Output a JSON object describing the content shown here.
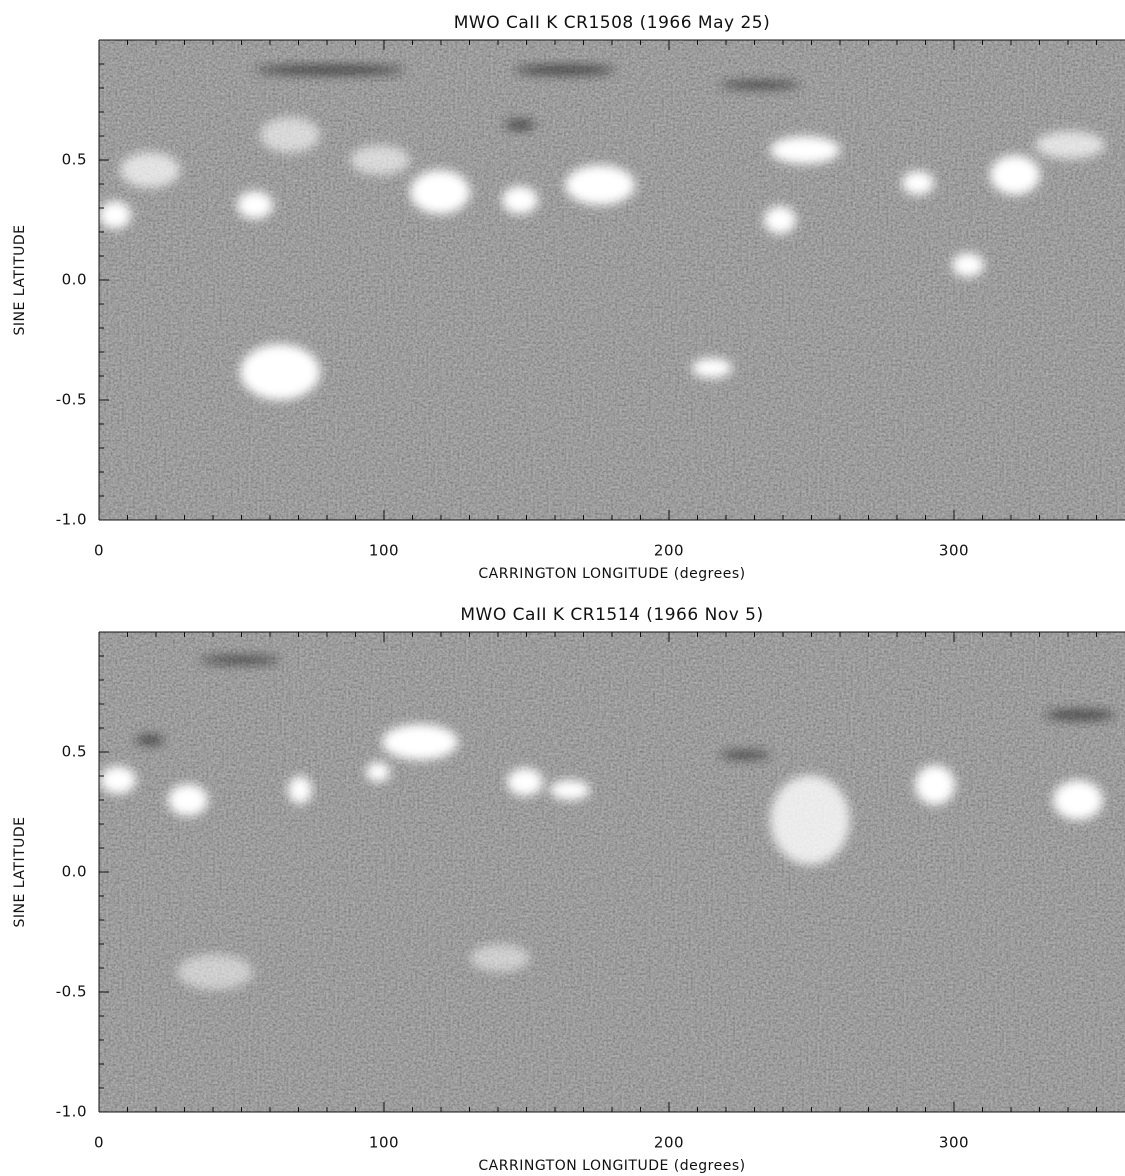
{
  "chart_data": [
    {
      "type": "image",
      "title": "MWO CaII K CR1508 (1966 May 25)",
      "x_label": "CARRINGTON LONGITUDE (degrees)",
      "y_label": "SINE LATITUDE",
      "xlim": [
        0,
        360
      ],
      "ylim": [
        -1,
        1
      ],
      "xticks": [
        0,
        100,
        200,
        300
      ],
      "yticks": [
        0.5,
        {
          "value": 0,
          "label": "0.0"
        },
        -0.5,
        {
          "value": -1,
          "label": "-1.0"
        }
      ],
      "xminorticks": [
        10,
        20,
        30,
        40,
        50,
        60,
        70,
        80,
        90,
        110,
        120,
        130,
        140,
        150,
        160,
        170,
        180,
        190,
        210,
        220,
        230,
        240,
        250,
        260,
        270,
        280,
        290,
        310,
        320,
        330,
        340,
        350
      ],
      "yminorticks": [
        -0.9,
        -0.8,
        -0.7,
        -0.6,
        -0.4,
        -0.3,
        -0.2,
        -0.1,
        0.1,
        0.2,
        0.3,
        0.4,
        0.6,
        0.7,
        0.8,
        0.9
      ]
    },
    {
      "type": "image",
      "title": "MWO CaII K CR1514 (1966 Nov  5)",
      "x_label": "CARRINGTON LONGITUDE (degrees)",
      "y_label": "SINE LATITUDE",
      "xlim": [
        0,
        360
      ],
      "ylim": [
        -1,
        1
      ],
      "xticks": [
        0,
        100,
        200,
        300
      ],
      "yticks": [
        0.5,
        {
          "value": 0,
          "label": "0.0"
        },
        -0.5,
        {
          "value": -1,
          "label": "-1.0"
        }
      ],
      "xminorticks": [
        10,
        20,
        30,
        40,
        50,
        60,
        70,
        80,
        90,
        110,
        120,
        130,
        140,
        150,
        160,
        170,
        180,
        190,
        210,
        220,
        230,
        240,
        250,
        260,
        270,
        280,
        290,
        310,
        320,
        330,
        340,
        350
      ],
      "yminorticks": [
        -0.9,
        -0.8,
        -0.7,
        -0.6,
        -0.4,
        -0.3,
        -0.2,
        -0.1,
        0.1,
        0.2,
        0.3,
        0.4,
        0.6,
        0.7,
        0.8,
        0.9
      ]
    }
  ]
}
